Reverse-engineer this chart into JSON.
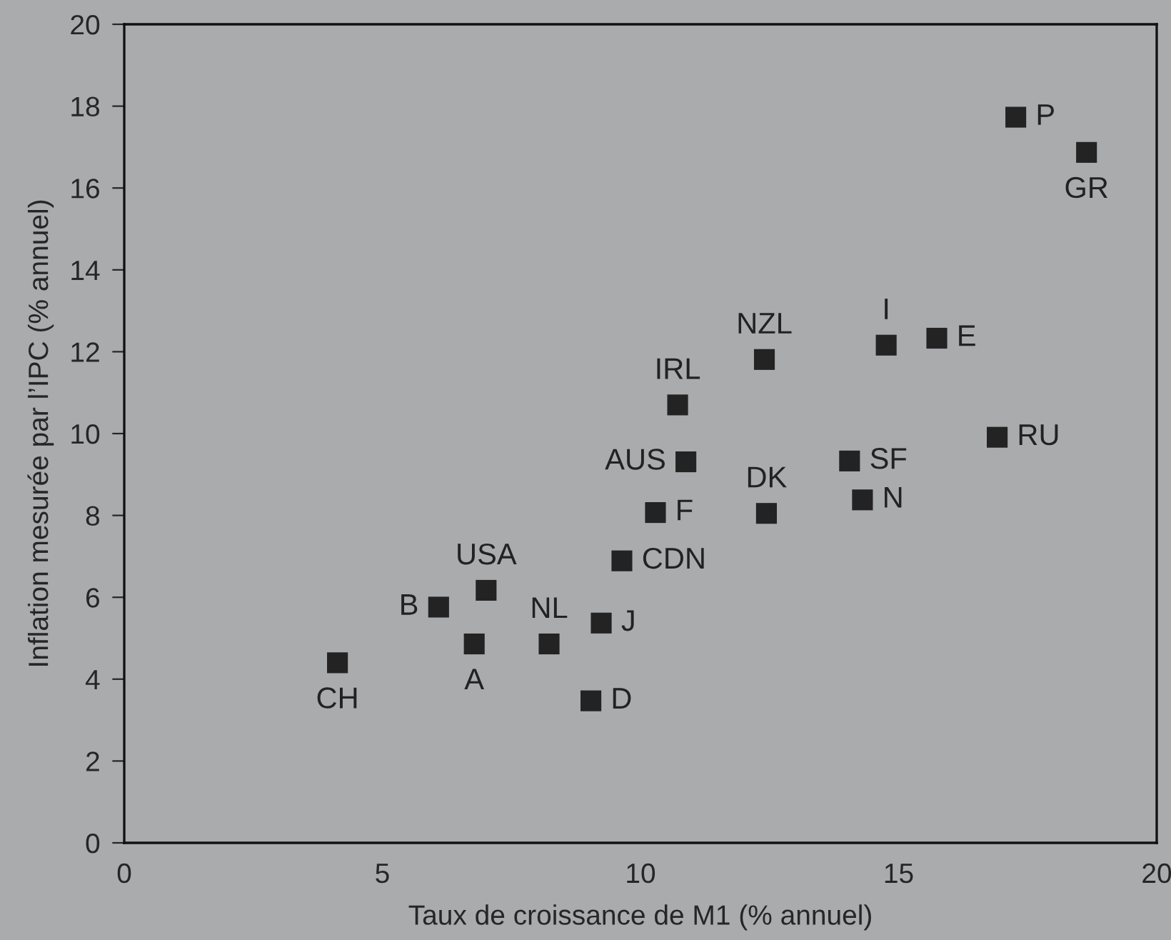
{
  "chart_data": {
    "type": "scatter",
    "xlabel": "Taux de croissance de M1 (% annuel)",
    "ylabel": "Inflation mesurée par l’IPC (% annuel)",
    "x": [
      4.13,
      6.09,
      7.01,
      6.78,
      8.23,
      9.24,
      9.04,
      9.64,
      10.29,
      10.88,
      10.72,
      12.4,
      14.76,
      15.74,
      16.91,
      14.05,
      14.3,
      12.44,
      17.27,
      18.64
    ],
    "series": [
      {
        "color": "#232323",
        "values": [
          4.4,
          5.76,
          6.17,
          4.86,
          4.86,
          5.37,
          3.47,
          6.89,
          8.07,
          9.31,
          10.7,
          11.81,
          12.16,
          12.33,
          9.91,
          9.33,
          8.38,
          8.05,
          17.73,
          16.87
        ]
      }
    ],
    "marker": "square",
    "grid": false,
    "legend": false,
    "xlim": [
      0,
      20
    ],
    "xticks": [
      0,
      5,
      10,
      15,
      20
    ],
    "ylim": [
      0,
      20
    ],
    "yticks": [
      0,
      2,
      4,
      6,
      8,
      10,
      12,
      14,
      16,
      18,
      20
    ],
    "annotations": [
      {
        "text": "CH",
        "x": 4.13,
        "y": 4.4
      },
      {
        "text": "B",
        "x": 6.09,
        "y": 5.76
      },
      {
        "text": "USA",
        "x": 7.01,
        "y": 6.17
      },
      {
        "text": "A",
        "x": 6.78,
        "y": 4.86
      },
      {
        "text": "NL",
        "x": 8.23,
        "y": 4.86
      },
      {
        "text": "J",
        "x": 9.24,
        "y": 5.37
      },
      {
        "text": "D",
        "x": 9.04,
        "y": 3.47
      },
      {
        "text": "CDN",
        "x": 9.64,
        "y": 6.89
      },
      {
        "text": "F",
        "x": 10.29,
        "y": 8.07
      },
      {
        "text": "AUS",
        "x": 10.88,
        "y": 9.31
      },
      {
        "text": "IRL",
        "x": 10.72,
        "y": 10.7
      },
      {
        "text": "NZL",
        "x": 12.4,
        "y": 11.81
      },
      {
        "text": "I",
        "x": 14.76,
        "y": 12.16
      },
      {
        "text": "E",
        "x": 15.74,
        "y": 12.33
      },
      {
        "text": "RU",
        "x": 16.91,
        "y": 9.91
      },
      {
        "text": "SF",
        "x": 14.05,
        "y": 9.33
      },
      {
        "text": "N",
        "x": 14.3,
        "y": 8.38
      },
      {
        "text": "DK",
        "x": 12.44,
        "y": 8.05
      },
      {
        "text": "P",
        "x": 17.27,
        "y": 17.73
      },
      {
        "text": "GR",
        "x": 18.64,
        "y": 16.87
      }
    ]
  }
}
